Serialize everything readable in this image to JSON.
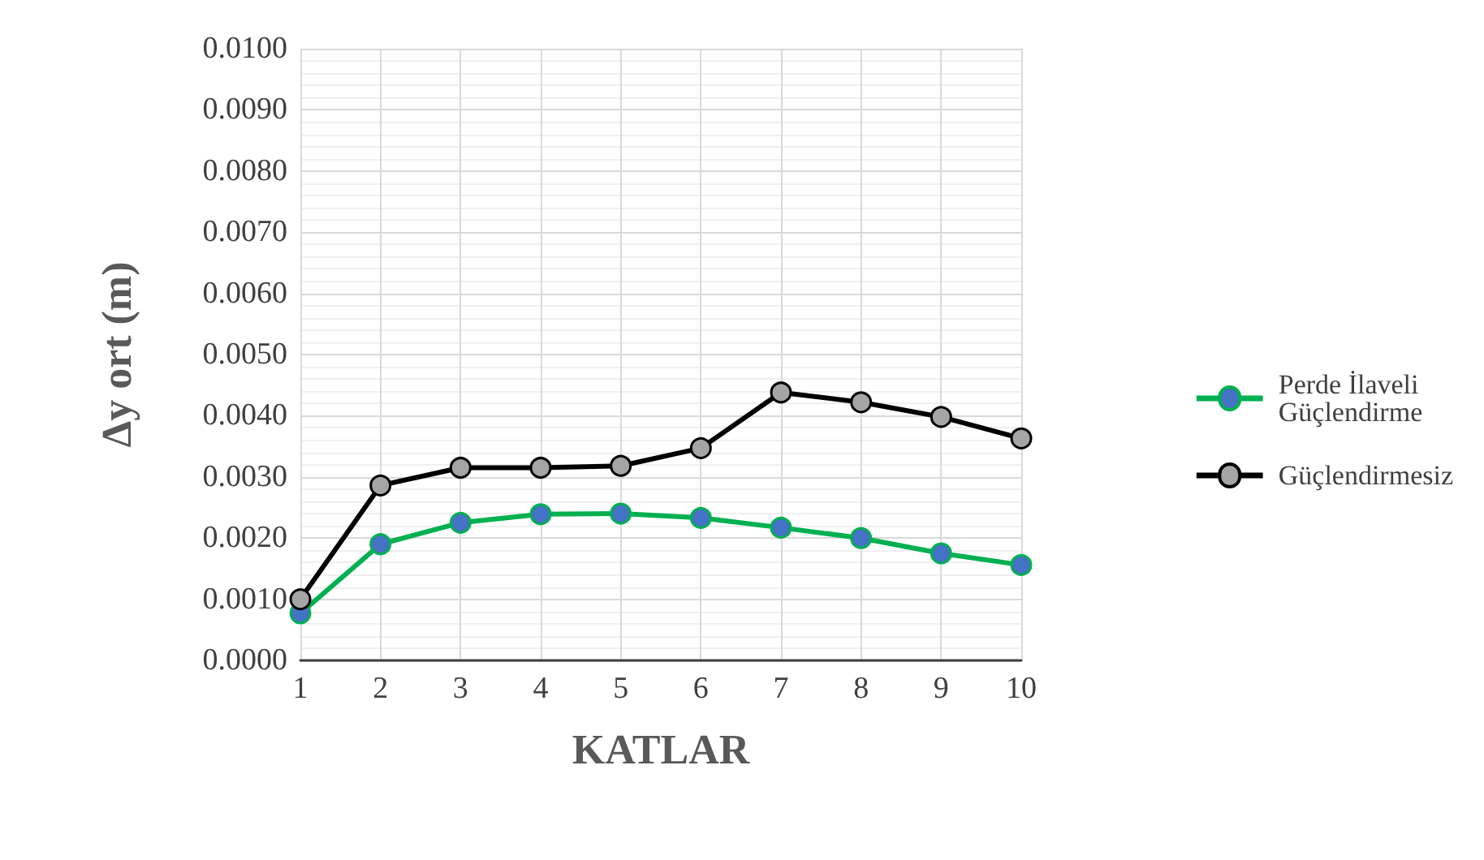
{
  "chart_data": {
    "type": "line",
    "xlabel": "KATLAR",
    "ylabel": "Δy ort (m)",
    "categories": [
      "1",
      "2",
      "3",
      "4",
      "5",
      "6",
      "7",
      "8",
      "9",
      "10"
    ],
    "series": [
      {
        "name": "Perde İlaveli\nGüçlendirme",
        "color": "#00b050",
        "values": [
          0.00077,
          0.0019,
          0.00225,
          0.00239,
          0.0024,
          0.00233,
          0.00217,
          0.002,
          0.00175,
          0.00156
        ]
      },
      {
        "name": "Güçlendirmesiz",
        "color": "#000000",
        "values": [
          0.001,
          0.00286,
          0.00315,
          0.00315,
          0.00318,
          0.00347,
          0.00438,
          0.00422,
          0.00398,
          0.00363
        ]
      }
    ],
    "ylim": [
      0,
      0.01
    ],
    "yticks": [
      {
        "value": 0,
        "label": "0.0000"
      },
      {
        "value": 0.001,
        "label": "0.0010"
      },
      {
        "value": 0.002,
        "label": "0.0020"
      },
      {
        "value": 0.003,
        "label": "0.0030"
      },
      {
        "value": 0.004,
        "label": "0.0040"
      },
      {
        "value": 0.005,
        "label": "0.0050"
      },
      {
        "value": 0.006,
        "label": "0.0060"
      },
      {
        "value": 0.007,
        "label": "0.0070"
      },
      {
        "value": 0.008,
        "label": "0.0080"
      },
      {
        "value": 0.009,
        "label": "0.0090"
      },
      {
        "value": 0.01,
        "label": "0.0100"
      }
    ],
    "grid": true,
    "legend": "right",
    "marker": "circle",
    "line_style": "solid"
  }
}
